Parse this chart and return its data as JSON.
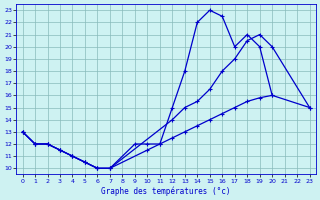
{
  "xlabel": "Graphe des températures (°c)",
  "background_color": "#cef2f2",
  "grid_color": "#88bbbb",
  "line_color": "#0000cc",
  "xlim": [
    -0.5,
    23.5
  ],
  "ylim": [
    9.5,
    23.5
  ],
  "yticks": [
    10,
    11,
    12,
    13,
    14,
    15,
    16,
    17,
    18,
    19,
    20,
    21,
    22,
    23
  ],
  "xticks": [
    0,
    1,
    2,
    3,
    4,
    5,
    6,
    7,
    8,
    9,
    10,
    11,
    12,
    13,
    14,
    15,
    16,
    17,
    18,
    19,
    20,
    21,
    22,
    23
  ],
  "line1_x": [
    0,
    1,
    2,
    3,
    4,
    5,
    6,
    7,
    9,
    10,
    11,
    12,
    13,
    14,
    15,
    16,
    17,
    18,
    19,
    20
  ],
  "line1_y": [
    13,
    12,
    12,
    11.5,
    11,
    10.5,
    10,
    10,
    12,
    12,
    12,
    15,
    18,
    22,
    23,
    22.5,
    20,
    21,
    20,
    16
  ],
  "line2_x": [
    0,
    1,
    2,
    3,
    4,
    5,
    6,
    7,
    12,
    13,
    14,
    15,
    16,
    17,
    18,
    19,
    20,
    23
  ],
  "line2_y": [
    13,
    12,
    12,
    11.5,
    11,
    10.5,
    10,
    10,
    14,
    15,
    15.5,
    16.5,
    18,
    19,
    20.5,
    21,
    20,
    15
  ],
  "line3_x": [
    0,
    1,
    2,
    3,
    4,
    5,
    6,
    7,
    10,
    11,
    12,
    13,
    14,
    15,
    16,
    17,
    18,
    19,
    20,
    23
  ],
  "line3_y": [
    13,
    12,
    12,
    11.5,
    11,
    10.5,
    10,
    10,
    11.5,
    12,
    12.5,
    13,
    13.5,
    14,
    14.5,
    15,
    15.5,
    15.8,
    16,
    15
  ]
}
